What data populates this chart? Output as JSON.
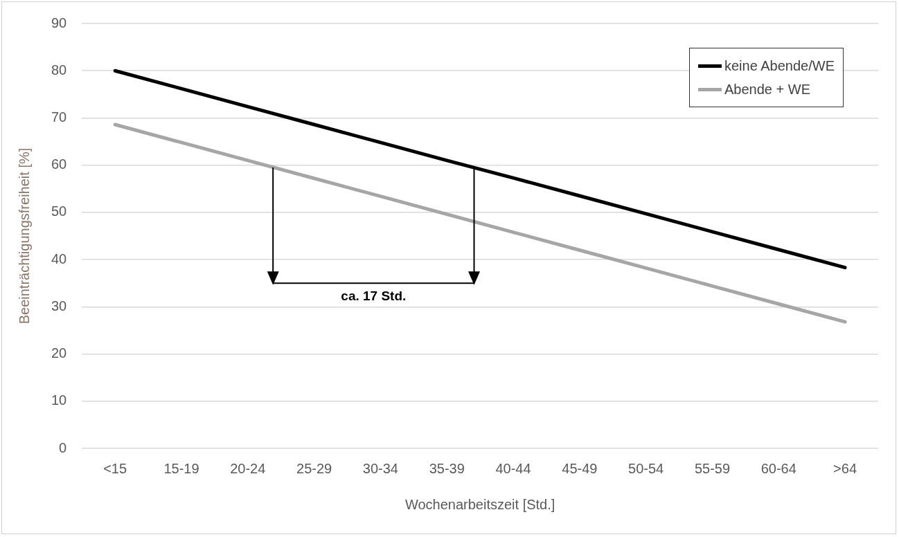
{
  "chart_data": {
    "type": "line",
    "xlabel": "Wochenarbeitszeit [Std.]",
    "ylabel": "Beeinträchtigungsfreiheit [%]",
    "categories": [
      "<15",
      "15-19",
      "20-24",
      "25-29",
      "30-34",
      "35-39",
      "40-44",
      "45-49",
      "50-54",
      "55-59",
      "60-64",
      ">64"
    ],
    "series": [
      {
        "name": "keine Abende/WE",
        "color": "#000000",
        "values": [
          80,
          76.2,
          72.4,
          68.6,
          64.8,
          61.0,
          57.3,
          53.5,
          49.7,
          45.9,
          42.1,
          38.3
        ]
      },
      {
        "name": "Abende + WE",
        "color": "#a6a6a6",
        "values": [
          68.6,
          64.8,
          61.0,
          57.2,
          53.4,
          49.6,
          45.8,
          42.0,
          38.2,
          34.4,
          30.6,
          26.8
        ]
      }
    ],
    "ylim": [
      0,
      90
    ],
    "yticks": [
      0,
      10,
      20,
      30,
      40,
      50,
      60,
      70,
      80,
      90
    ],
    "grid": "y",
    "legend": "top right",
    "marker": "none",
    "line_style": "solid",
    "annotations": [
      "ca. 17 Std."
    ]
  }
}
